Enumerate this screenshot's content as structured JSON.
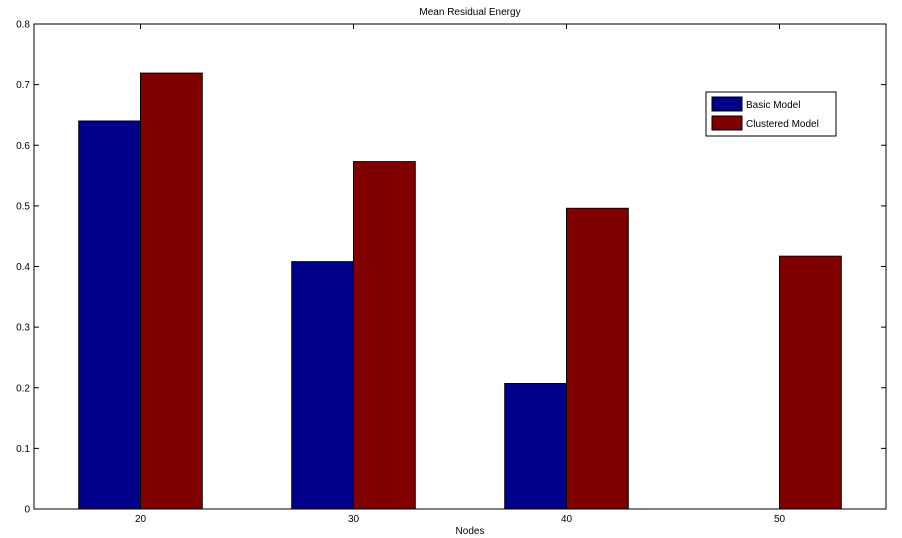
{
  "chart_data": {
    "type": "bar",
    "title": "Mean Residual Energy",
    "xlabel": "Nodes",
    "ylabel": "",
    "categories": [
      "20",
      "30",
      "40",
      "50"
    ],
    "series": [
      {
        "name": "Basic Model",
        "values": [
          0.64,
          0.408,
          0.207,
          0.0
        ],
        "color": "#00008B"
      },
      {
        "name": "Clustered Model",
        "values": [
          0.719,
          0.573,
          0.496,
          0.417
        ],
        "color": "#800000"
      }
    ],
    "ylim": [
      0,
      0.8
    ],
    "yticks": [
      "0",
      "0.1",
      "0.2",
      "0.3",
      "0.4",
      "0.5",
      "0.6",
      "0.7",
      "0.8"
    ],
    "grid": false,
    "legend_position": "top-right"
  }
}
